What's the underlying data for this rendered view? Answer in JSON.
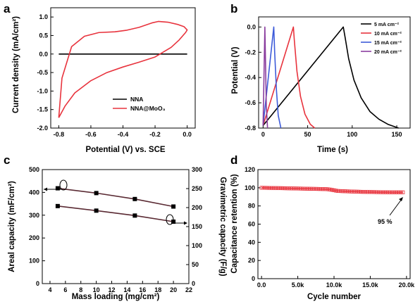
{
  "chart_data": [
    {
      "panel": "a",
      "type": "line",
      "xlabel": "Potential (V) vs. SCE",
      "ylabel": "Current density (mA/cm²)",
      "xlim": [
        -0.85,
        0.05
      ],
      "ylim": [
        -2.0,
        1.25
      ],
      "xticks": [
        "-0.8",
        "-0.6",
        "-0.4",
        "-0.2",
        "0.0"
      ],
      "yticks": [
        "-2.0",
        "-1.5",
        "-1.0",
        "-0.5",
        "0.0",
        "0.5",
        "1.0"
      ],
      "legend_position": "bottom-right",
      "series": [
        {
          "name": "NNA",
          "color": "#000000",
          "x": [
            -0.8,
            0.0
          ],
          "y": [
            0.0,
            0.0
          ]
        },
        {
          "name": "NNA@MoO₃",
          "color": "#e8333d",
          "x": [
            -0.8,
            -0.78,
            -0.72,
            -0.64,
            -0.55,
            -0.45,
            -0.38,
            -0.3,
            -0.22,
            -0.18,
            -0.12,
            -0.06,
            -0.02,
            0.0,
            -0.01,
            -0.05,
            -0.1,
            -0.2,
            -0.3,
            -0.4,
            -0.5,
            -0.6,
            -0.7,
            -0.76,
            -0.8
          ],
          "y": [
            -1.72,
            -0.65,
            0.2,
            0.48,
            0.58,
            0.6,
            0.64,
            0.72,
            0.84,
            0.88,
            0.86,
            0.8,
            0.74,
            0.65,
            0.58,
            0.38,
            0.18,
            -0.08,
            -0.22,
            -0.35,
            -0.5,
            -0.72,
            -1.05,
            -1.4,
            -1.72
          ]
        }
      ]
    },
    {
      "panel": "b",
      "type": "line",
      "xlabel": "Time (s)",
      "ylabel": "Potential (V)",
      "xlim": [
        -5,
        165
      ],
      "ylim": [
        -0.8,
        0.08
      ],
      "xticks": [
        "0",
        "50",
        "100",
        "150"
      ],
      "yticks": [
        "-0.8",
        "-0.6",
        "-0.4",
        "-0.2",
        "0.0"
      ],
      "legend_position": "top-right",
      "series": [
        {
          "name": "5 mA cm⁻²",
          "color": "#000000",
          "x": [
            0,
            90,
            92,
            96,
            102,
            110,
            120,
            130,
            140,
            152
          ],
          "y": [
            -0.78,
            0.0,
            -0.08,
            -0.25,
            -0.42,
            -0.56,
            -0.67,
            -0.73,
            -0.77,
            -0.8
          ]
        },
        {
          "name": "10 mA cm⁻²",
          "color": "#e8333d",
          "x": [
            0,
            34,
            35,
            38,
            42,
            47,
            53,
            58
          ],
          "y": [
            -0.78,
            0.0,
            -0.1,
            -0.35,
            -0.55,
            -0.69,
            -0.77,
            -0.8
          ]
        },
        {
          "name": "15 mA cm⁻²",
          "color": "#3d5bd9",
          "x": [
            0,
            12,
            13,
            15,
            17,
            20
          ],
          "y": [
            -0.78,
            0.0,
            -0.2,
            -0.5,
            -0.7,
            -0.8
          ]
        },
        {
          "name": "20 mA cm⁻²",
          "color": "#8a3d9e",
          "x": [
            0,
            2,
            2.8,
            3.6,
            5
          ],
          "y": [
            -0.78,
            0.0,
            -0.3,
            -0.62,
            -0.8
          ]
        }
      ]
    },
    {
      "panel": "c",
      "type": "line",
      "xlabel": "Mass loading (mg/cm²)",
      "ylabel": "Areal capacity (mF/cm²)",
      "y2label": "Gravimetric capacity (F/g)",
      "xlim": [
        3,
        22
      ],
      "ylim": [
        0,
        500
      ],
      "y2lim": [
        0,
        300
      ],
      "xticks": [
        "4",
        "6",
        "8",
        "10",
        "12",
        "14",
        "16",
        "18",
        "20",
        "22"
      ],
      "yticks": [
        "0",
        "100",
        "200",
        "300",
        "400",
        "500"
      ],
      "y2ticks": [
        "0",
        "50",
        "100",
        "150",
        "200",
        "250",
        "300"
      ],
      "series": [
        {
          "name": "Areal capacity",
          "axis": "left",
          "x": [
            5,
            10,
            15,
            20
          ],
          "y": [
            418,
            397,
            371,
            338
          ]
        },
        {
          "name": "Gravimetric capacity",
          "axis": "right",
          "x": [
            5,
            10,
            15,
            20
          ],
          "y": [
            204,
            192,
            179,
            163
          ]
        }
      ]
    },
    {
      "panel": "d",
      "type": "scatter",
      "xlabel": "Cycle number",
      "ylabel": "Capacitance retention (%)",
      "xlim": [
        -500,
        20500
      ],
      "ylim": [
        0,
        120
      ],
      "xticks": [
        "0.0",
        "5.0k",
        "10.0k",
        "15.0k",
        "20.0k"
      ],
      "yticks": [
        "0",
        "20",
        "40",
        "60",
        "80",
        "100",
        "120"
      ],
      "annotation": "95 %",
      "series": [
        {
          "name": "Capacitance retention",
          "color": "#e8333d",
          "x": [
            0,
            3000,
            6000,
            9000,
            9500,
            10500,
            12000,
            14000,
            16000,
            18000,
            19500
          ],
          "y": [
            100,
            99.5,
            99,
            98.5,
            98,
            96.5,
            96,
            95.5,
            95.2,
            95,
            95
          ]
        }
      ]
    }
  ]
}
